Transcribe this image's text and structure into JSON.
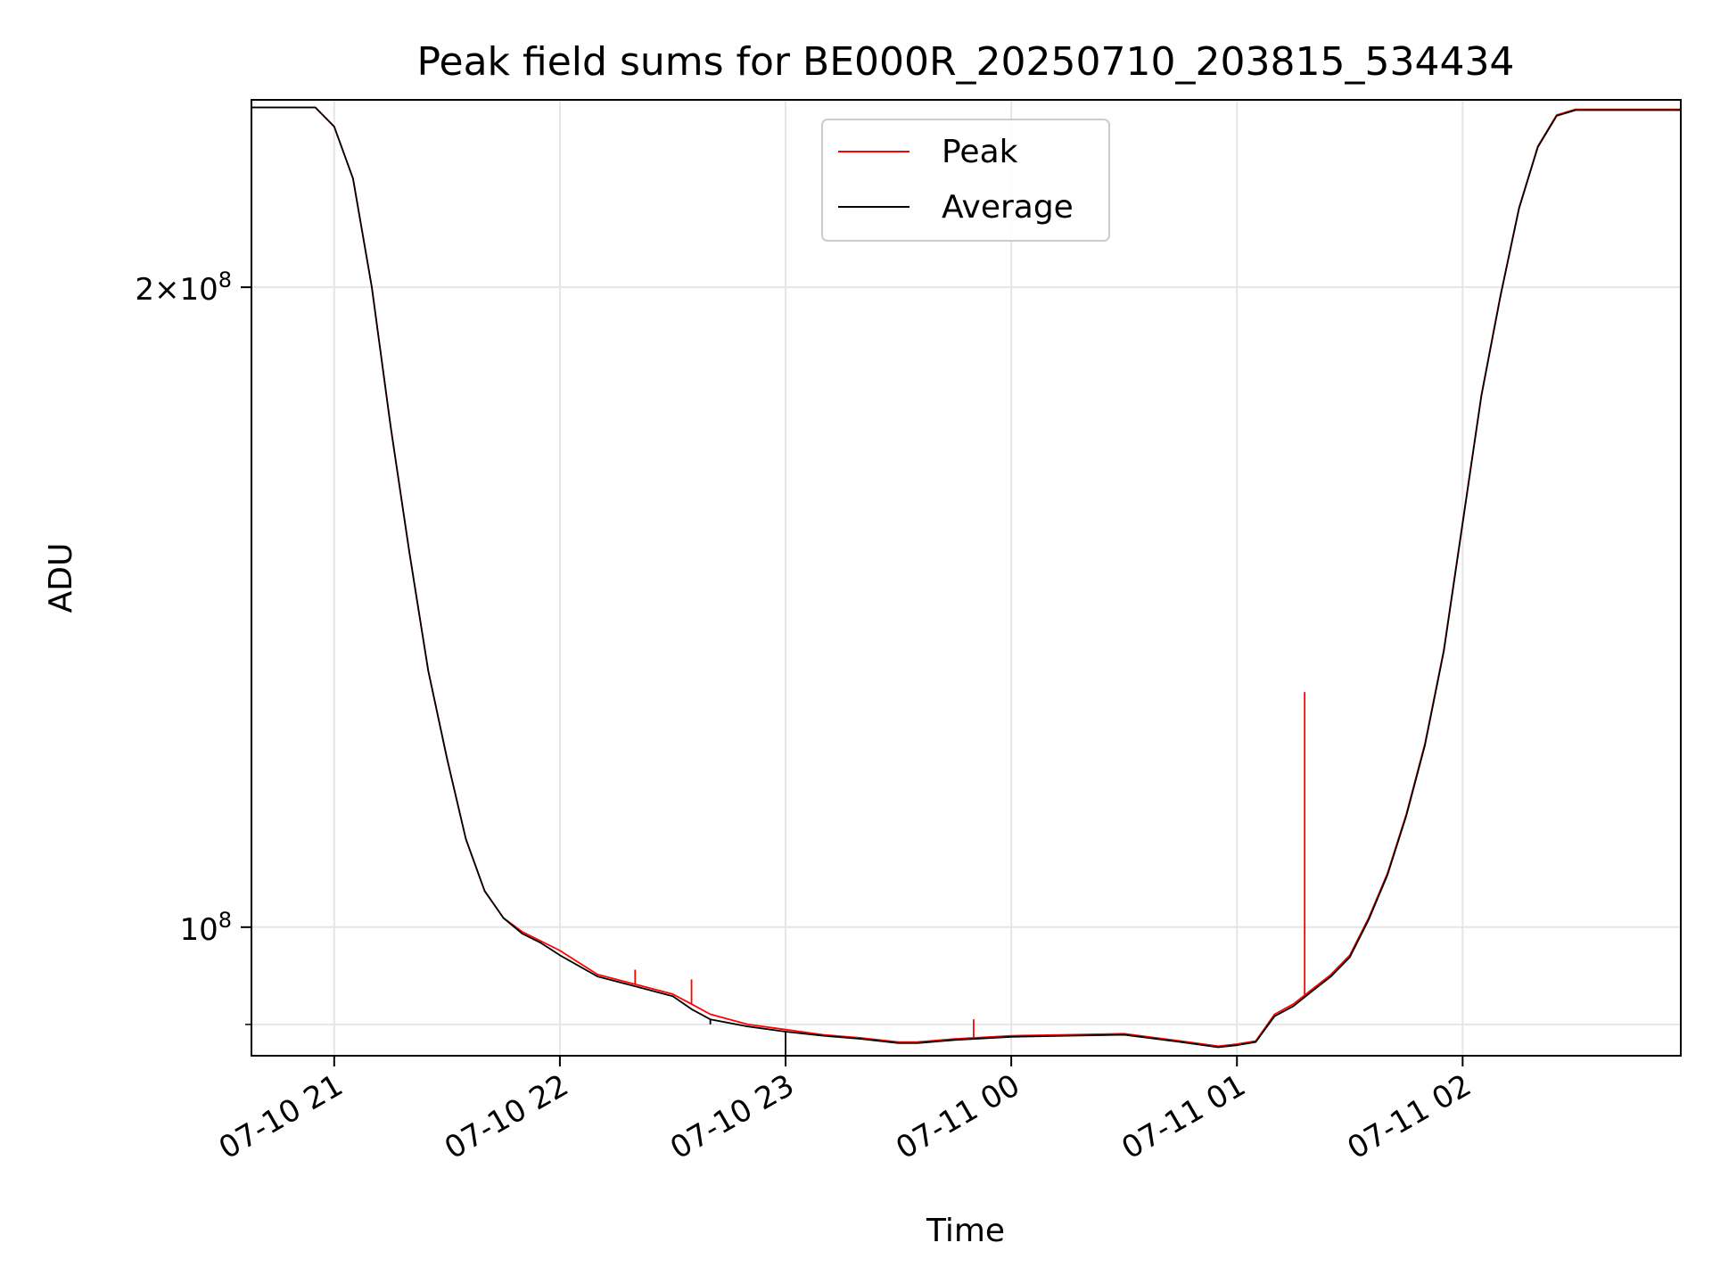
{
  "chart_data": {
    "type": "line",
    "title": "Peak field sums for BE000R_20250710_203815_534434",
    "xlabel": "Time",
    "ylabel": "ADU",
    "xlim": [
      "2025-07-10 20:38",
      "2025-07-11 02:58"
    ],
    "ylim": [
      87000000,
      245000000
    ],
    "yscale": "log",
    "grid": true,
    "legend_position": "top-center",
    "x_ticks": [
      {
        "value": "2025-07-10 21:00",
        "label": "07-10 21"
      },
      {
        "value": "2025-07-10 22:00",
        "label": "07-10 22"
      },
      {
        "value": "2025-07-10 23:00",
        "label": "07-10 23"
      },
      {
        "value": "2025-07-11 00:00",
        "label": "07-11 00"
      },
      {
        "value": "2025-07-11 01:00",
        "label": "07-11 01"
      },
      {
        "value": "2025-07-11 02:00",
        "label": "07-11 02"
      }
    ],
    "y_major_ticks": [
      {
        "value": 100000000,
        "mantissa": "",
        "exp": "8"
      },
      {
        "value": 200000000,
        "mantissa": "2",
        "exp": "8"
      }
    ],
    "y_minor_ticks": [
      90000000
    ],
    "x": [
      "2025-07-10 20:38",
      "2025-07-10 20:55",
      "2025-07-10 21:00",
      "2025-07-10 21:05",
      "2025-07-10 21:10",
      "2025-07-10 21:15",
      "2025-07-10 21:20",
      "2025-07-10 21:25",
      "2025-07-10 21:30",
      "2025-07-10 21:35",
      "2025-07-10 21:40",
      "2025-07-10 21:45",
      "2025-07-10 21:50",
      "2025-07-10 21:55",
      "2025-07-10 22:00",
      "2025-07-10 22:10",
      "2025-07-10 22:20",
      "2025-07-10 22:30",
      "2025-07-10 22:35",
      "2025-07-10 22:40",
      "2025-07-10 22:50",
      "2025-07-10 23:00",
      "2025-07-10 23:10",
      "2025-07-10 23:20",
      "2025-07-10 23:30",
      "2025-07-10 23:35",
      "2025-07-10 23:45",
      "2025-07-11 00:00",
      "2025-07-11 00:15",
      "2025-07-11 00:30",
      "2025-07-11 00:45",
      "2025-07-11 00:55",
      "2025-07-11 01:00",
      "2025-07-11 01:05",
      "2025-07-11 01:10",
      "2025-07-11 01:15",
      "2025-07-11 01:20",
      "2025-07-11 01:25",
      "2025-07-11 01:30",
      "2025-07-11 01:35",
      "2025-07-11 01:40",
      "2025-07-11 01:45",
      "2025-07-11 01:50",
      "2025-07-11 01:55",
      "2025-07-11 02:00",
      "2025-07-11 02:05",
      "2025-07-11 02:10",
      "2025-07-11 02:15",
      "2025-07-11 02:20",
      "2025-07-11 02:25",
      "2025-07-11 02:30",
      "2025-07-11 02:58"
    ],
    "series": [
      {
        "name": "Peak",
        "color": "#ff0000",
        "values": [
          243000000,
          243000000,
          238000000,
          225000000,
          200000000,
          172000000,
          150000000,
          132000000,
          120000000,
          110000000,
          104000000,
          101000000,
          99500000,
          98500000,
          97500000,
          95000000,
          94000000,
          93000000,
          92000000,
          91000000,
          90000000,
          89500000,
          89000000,
          88700000,
          88300000,
          88300000,
          88600000,
          88900000,
          89000000,
          89100000,
          88400000,
          87900000,
          88100000,
          88400000,
          91000000,
          92000000,
          93500000,
          95000000,
          97000000,
          101000000,
          106000000,
          113000000,
          122000000,
          135000000,
          155000000,
          178000000,
          198000000,
          218000000,
          233000000,
          241000000,
          242500000,
          242500000
        ],
        "spikes": [
          {
            "x": "2025-07-11 01:18",
            "y": 129000000
          },
          {
            "x": "2025-07-10 22:20",
            "y": 95500000
          },
          {
            "x": "2025-07-10 22:35",
            "y": 94500000
          },
          {
            "x": "2025-07-10 23:50",
            "y": 90500000
          }
        ]
      },
      {
        "name": "Average",
        "color": "#000000",
        "values": [
          243000000,
          243000000,
          238000000,
          225000000,
          200000000,
          172000000,
          150000000,
          132000000,
          120000000,
          110000000,
          104000000,
          101000000,
          99300000,
          98300000,
          97000000,
          94800000,
          93800000,
          92800000,
          91500000,
          90500000,
          89800000,
          89300000,
          88900000,
          88600000,
          88200000,
          88200000,
          88500000,
          88800000,
          88900000,
          89000000,
          88300000,
          87800000,
          88000000,
          88300000,
          90800000,
          91800000,
          93300000,
          94800000,
          96800000,
          100800000,
          105800000,
          112800000,
          121800000,
          134800000,
          154800000,
          177800000,
          197800000,
          217800000,
          232800000,
          240800000,
          242300000,
          242300000
        ],
        "spikes": [
          {
            "x": "2025-07-10 23:00",
            "y": 86000000
          },
          {
            "x": "2025-07-10 22:40",
            "y": 90000000
          }
        ]
      }
    ]
  }
}
